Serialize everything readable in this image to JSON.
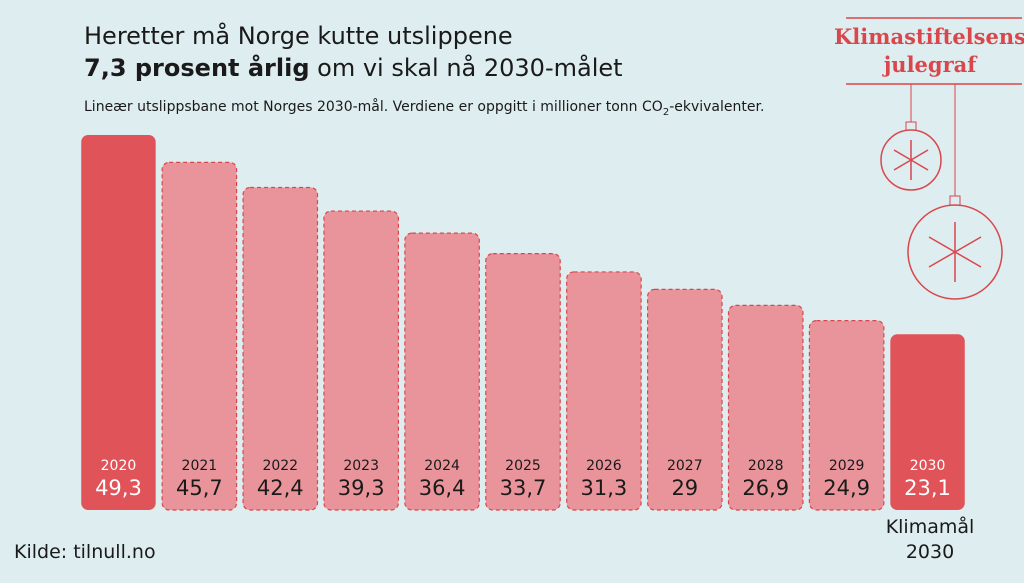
{
  "chart_data": {
    "type": "bar",
    "title_line1": "Heretter må Norge kutte utslippene",
    "title_bold": "7,3 prosent årlig",
    "title_rest": " om vi skal nå 2030-målet",
    "subtitle": [
      "Lineær utslippsbane mot Norges 2030-mål. Verdiene er oppgitt i millioner tonn CO",
      "2",
      "-ekvivalenter."
    ],
    "categories": [
      "2020",
      "2021",
      "2022",
      "2023",
      "2024",
      "2025",
      "2026",
      "2027",
      "2028",
      "2029",
      "2030"
    ],
    "values": [
      49.3,
      45.7,
      42.4,
      39.3,
      36.4,
      33.7,
      31.3,
      29,
      26.9,
      24.9,
      23.1
    ],
    "value_labels": [
      "49,3",
      "45,7",
      "42,4",
      "39,3",
      "36,4",
      "33,7",
      "31,3",
      "29",
      "26,9",
      "24,9",
      "23,1"
    ],
    "colors": [
      "#e05358",
      "#e8949a",
      "#e8949a",
      "#e8949a",
      "#e8949a",
      "#e8949a",
      "#e8949a",
      "#e8949a",
      "#e8949a",
      "#e8949a",
      "#e05358"
    ],
    "annotation": [
      "Klimamål",
      "2030"
    ],
    "source": "Kilde: tilnull.no",
    "brand": [
      "Klimastiftelsens",
      "julegraf"
    ]
  }
}
